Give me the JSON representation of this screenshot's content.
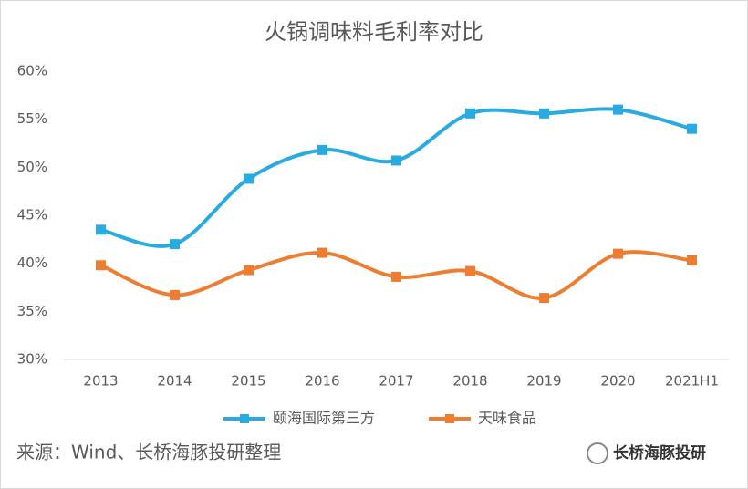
{
  "chart_data": {
    "type": "line",
    "title": "火锅调味料毛利率对比",
    "categories": [
      "2013",
      "2014",
      "2015",
      "2016",
      "2017",
      "2018",
      "2019",
      "2020",
      "2021H1"
    ],
    "series": [
      {
        "name": "颐海国际第三方",
        "color": "#29abe2",
        "values": [
          43.5,
          42.0,
          48.8,
          51.8,
          50.7,
          55.6,
          55.6,
          56.0,
          54.0
        ]
      },
      {
        "name": "天味食品",
        "color": "#ed7d31",
        "values": [
          39.8,
          36.7,
          39.3,
          41.1,
          38.6,
          39.2,
          36.4,
          41.0,
          40.3
        ]
      }
    ],
    "ylim": [
      30,
      60
    ],
    "yticks": [
      {
        "value": 30,
        "label": "30%"
      },
      {
        "value": 35,
        "label": "35%"
      },
      {
        "value": 40,
        "label": "40%"
      },
      {
        "value": 45,
        "label": "45%"
      },
      {
        "value": 50,
        "label": "50%"
      },
      {
        "value": 55,
        "label": "55%"
      },
      {
        "value": 60,
        "label": "60%"
      }
    ],
    "grid": false,
    "legend": "bottom",
    "source": "来源：Wind、长桥海豚投研整理",
    "logo": "长桥海豚投研"
  }
}
